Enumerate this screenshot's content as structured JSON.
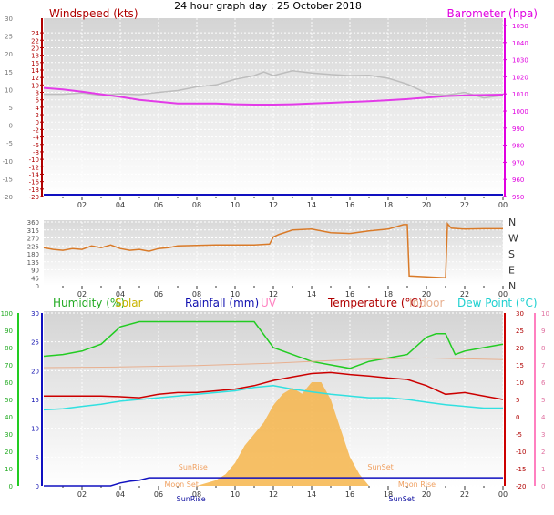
{
  "title": "24 hour graph day : 25 October 2018",
  "x_ticks": [
    "02",
    "04",
    "06",
    "08",
    "10",
    "12",
    "14",
    "16",
    "18",
    "20",
    "22",
    "00"
  ],
  "colors": {
    "wind": "#b00000",
    "baro": "#e000e0",
    "gust": "#bdbdbd",
    "windavg": "#e33be8",
    "dir": "#d97a28",
    "humidity": "#22cc22",
    "solar": "#c8b400",
    "rain": "#1010c0",
    "uv": "#ff80c0",
    "temp": "#cc0000",
    "indoor": "#e8b090",
    "dew": "#30e0e0",
    "solar_fill": "#f5b040"
  },
  "chart_data": [
    {
      "type": "line",
      "id": "wind",
      "label_left": "Windspeed (kts)",
      "label_right": "Barometer (hpa)",
      "y_left": {
        "min": -20,
        "max": 25,
        "ticks": [
          -20,
          -18,
          -16,
          -14,
          -12,
          -10,
          -8,
          -6,
          -4,
          -2,
          0,
          2,
          4,
          6,
          8,
          10,
          12,
          14,
          16,
          18,
          20,
          22,
          24
        ]
      },
      "y_left_outer": {
        "min": -20,
        "max": 30,
        "ticks": [
          -20,
          -15,
          -10,
          -5,
          0,
          5,
          10,
          15,
          20,
          25,
          30
        ]
      },
      "y_right": {
        "min": 980,
        "max": 1050,
        "ticks": [
          980,
          990,
          1000,
          1010,
          1020,
          1030,
          1040,
          1050
        ],
        "minor": [
          970,
          960,
          950
        ]
      },
      "series": [
        {
          "key": "gust",
          "x": [
            0,
            1,
            2,
            3,
            4,
            5,
            6,
            7,
            8,
            9,
            10,
            10.5,
            11,
            11.5,
            12,
            13,
            14,
            15,
            16,
            17,
            18,
            18.5,
            19,
            20,
            20.5,
            21,
            22,
            23,
            24
          ],
          "y": [
            7.5,
            7.5,
            7.8,
            7.2,
            7.6,
            7.4,
            8.0,
            8.5,
            9.5,
            10,
            11.5,
            12,
            12.5,
            13.5,
            12.5,
            13.8,
            13.2,
            12.8,
            12.5,
            12.6,
            11.8,
            11,
            10.2,
            7.8,
            7.5,
            7.2,
            8.0,
            6.5,
            7.2
          ]
        },
        {
          "key": "windavg",
          "x": [
            0,
            1,
            2,
            3,
            4,
            5,
            6,
            7,
            8,
            9,
            10,
            11,
            12,
            13,
            14,
            15,
            16,
            17,
            18,
            19,
            20,
            21,
            22,
            23,
            24
          ],
          "y": [
            9.2,
            8.8,
            8.2,
            7.5,
            6.8,
            6.0,
            5.5,
            5.0,
            5.0,
            5.0,
            4.8,
            4.7,
            4.7,
            4.8,
            5.0,
            5.2,
            5.4,
            5.6,
            5.9,
            6.2,
            6.6,
            7.0,
            7.2,
            7.3,
            7.4
          ]
        }
      ]
    },
    {
      "type": "line",
      "id": "direction",
      "y_left": {
        "min": 0,
        "max": 360,
        "ticks": [
          0,
          45,
          90,
          135,
          180,
          225,
          270,
          315,
          360
        ]
      },
      "y_right_labels": [
        "N",
        "E",
        "S",
        "W",
        "N"
      ],
      "series": [
        {
          "key": "dir",
          "x": [
            0,
            0.5,
            1,
            1.5,
            2,
            2.5,
            3,
            3.5,
            4,
            4.5,
            5,
            5.5,
            6,
            6.5,
            7,
            8,
            9,
            10,
            11,
            11.8,
            12,
            12.3,
            13,
            14,
            15,
            16,
            17,
            18,
            18.8,
            19,
            19.1,
            20,
            21,
            21.1,
            21.3,
            22,
            23,
            24
          ],
          "y": [
            215,
            205,
            200,
            210,
            205,
            225,
            215,
            230,
            210,
            200,
            205,
            195,
            210,
            215,
            225,
            228,
            230,
            230,
            230,
            235,
            275,
            290,
            315,
            320,
            300,
            295,
            310,
            320,
            345,
            345,
            55,
            50,
            45,
            350,
            325,
            320,
            322,
            322
          ]
        }
      ]
    },
    {
      "type": "line",
      "id": "temperature",
      "legend": [
        "Humidity (%)",
        "Solar",
        "Rainfall (mm)",
        "UV",
        "Temperature (°C)",
        "Indoor",
        "Dew Point (°C)"
      ],
      "y_humidity": {
        "min": 0,
        "max": 100,
        "ticks": [
          0,
          10,
          20,
          30,
          40,
          50,
          60,
          70,
          80,
          90,
          100
        ]
      },
      "y_rain": {
        "min": 0,
        "max": 30,
        "ticks": [
          0,
          5,
          10,
          15,
          20,
          25,
          30
        ]
      },
      "y_temp": {
        "min": -20,
        "max": 30,
        "ticks": [
          -20,
          -15,
          -10,
          -5,
          0,
          5,
          10,
          15,
          20,
          25,
          30
        ]
      },
      "y_uv": {
        "min": 0,
        "max": 10,
        "ticks": [
          0,
          1,
          2,
          3,
          4,
          5,
          6,
          7,
          8,
          9,
          10
        ]
      },
      "annotations": [
        "SunRise",
        "SunSet",
        "SunRise",
        "SunSet",
        "Moon Set",
        "Moon Rise"
      ],
      "series": [
        {
          "key": "humidity",
          "x": [
            0,
            1,
            2,
            3,
            4,
            5,
            6,
            7,
            8,
            9,
            10,
            11,
            12,
            13,
            14,
            15,
            16,
            17,
            18,
            19,
            20,
            20.5,
            21,
            21.5,
            22,
            23,
            24
          ],
          "y": [
            75,
            76,
            78,
            82,
            92,
            95,
            95,
            95,
            95,
            95,
            95,
            95,
            80,
            76,
            72,
            70,
            68,
            72,
            74,
            76,
            86,
            88,
            88,
            76,
            78,
            80,
            82
          ]
        },
        {
          "key": "temp",
          "x": [
            0,
            1,
            2,
            3,
            4,
            5,
            6,
            7,
            8,
            9,
            10,
            11,
            12,
            13,
            14,
            15,
            16,
            17,
            18,
            19,
            20,
            21,
            22,
            23,
            24
          ],
          "y": [
            6.0,
            6.0,
            6.0,
            6.0,
            5.8,
            5.5,
            6.5,
            7.0,
            7.0,
            7.5,
            8.0,
            9.0,
            10.5,
            11.5,
            12.5,
            12.8,
            12.2,
            11.8,
            11.2,
            10.8,
            9.0,
            6.5,
            7.0,
            6.0,
            5.0
          ]
        },
        {
          "key": "dew",
          "x": [
            0,
            1,
            2,
            3,
            4,
            5,
            6,
            7,
            8,
            9,
            10,
            11,
            12,
            13,
            14,
            15,
            16,
            17,
            18,
            19,
            20,
            21,
            22,
            23,
            24
          ],
          "y": [
            2.0,
            2.3,
            3.0,
            3.6,
            4.5,
            5.0,
            5.5,
            6.0,
            6.5,
            7.0,
            7.5,
            8.5,
            9.0,
            8.0,
            7.2,
            6.5,
            6.0,
            5.5,
            5.5,
            5.0,
            4.2,
            3.5,
            3.0,
            2.5,
            2.5
          ]
        },
        {
          "key": "indoor",
          "x": [
            0,
            4,
            8,
            12,
            16,
            20,
            24
          ],
          "y": [
            14.2,
            14.4,
            14.8,
            15.5,
            16.5,
            17.0,
            16.5
          ]
        },
        {
          "key": "rain",
          "x": [
            0,
            2,
            3.5,
            4,
            4.5,
            5,
            5.5,
            24
          ],
          "y": [
            0,
            0,
            0,
            0.5,
            0.8,
            1.0,
            1.4,
            1.4
          ]
        }
      ],
      "solar": {
        "x": [
          8,
          9,
          9.5,
          10,
          10.5,
          11,
          11.5,
          12,
          12.5,
          13,
          13.5,
          14,
          14.5,
          15,
          15.5,
          16,
          16.5,
          17
        ],
        "y": [
          0,
          1,
          2,
          4,
          7,
          9,
          11,
          14,
          16,
          17,
          16,
          18,
          18,
          15,
          10,
          5,
          2,
          0
        ]
      }
    }
  ]
}
